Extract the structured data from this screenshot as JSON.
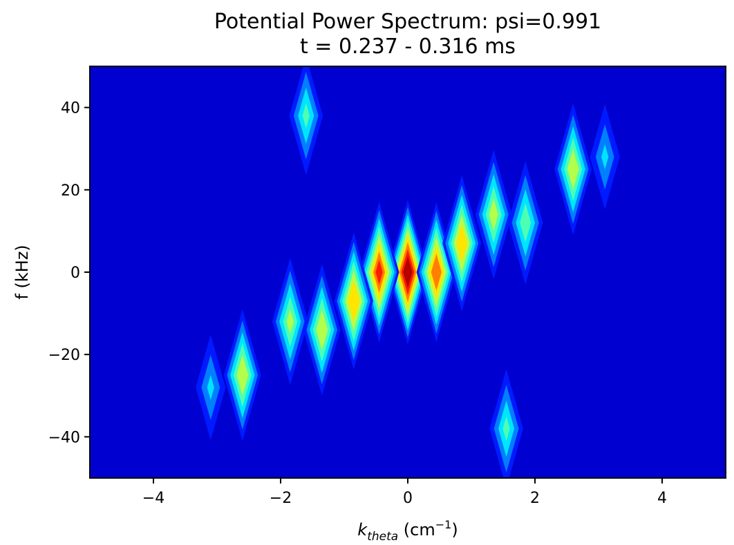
{
  "chart_data": {
    "type": "heatmap",
    "title": "Potential Power Spectrum: psi=0.991",
    "subtitle": "t = 0.237 - 0.316 ms",
    "xlabel": {
      "base": "k",
      "sub": "theta",
      "unit_open": " (cm",
      "unit_sup": "−1",
      "unit_close": ")"
    },
    "ylabel": "f (kHz)",
    "xlim": [
      -5,
      5
    ],
    "ylim": [
      -50,
      50
    ],
    "x_ticks": [
      -4,
      -2,
      0,
      2,
      4
    ],
    "x_tick_labels": [
      "−4",
      "−2",
      "0",
      "2",
      "4"
    ],
    "y_ticks": [
      40,
      20,
      0,
      -20,
      -40
    ],
    "y_tick_labels": [
      "40",
      "20",
      "0",
      "−20",
      "−40"
    ],
    "colormap": "jet",
    "background_level": 0.08,
    "peaks": [
      {
        "k": 0.0,
        "f": 0,
        "amp": 1.0
      },
      {
        "k": -0.45,
        "f": 0,
        "amp": 0.85
      },
      {
        "k": 0.45,
        "f": 0,
        "amp": 0.82
      },
      {
        "k": -0.85,
        "f": -7,
        "amp": 0.74
      },
      {
        "k": 0.85,
        "f": 7,
        "amp": 0.72
      },
      {
        "k": -1.35,
        "f": -14,
        "amp": 0.62
      },
      {
        "k": 1.35,
        "f": 14,
        "amp": 0.58
      },
      {
        "k": -1.85,
        "f": -12,
        "amp": 0.55
      },
      {
        "k": 1.85,
        "f": 12,
        "amp": 0.5
      },
      {
        "k": -2.6,
        "f": -25,
        "amp": 0.62
      },
      {
        "k": 2.6,
        "f": 25,
        "amp": 0.62
      },
      {
        "k": -3.1,
        "f": -28,
        "amp": 0.35
      },
      {
        "k": 3.1,
        "f": 28,
        "amp": 0.35
      },
      {
        "k": -1.6,
        "f": 38,
        "amp": 0.45
      },
      {
        "k": 1.55,
        "f": -38,
        "amp": 0.45
      }
    ]
  }
}
